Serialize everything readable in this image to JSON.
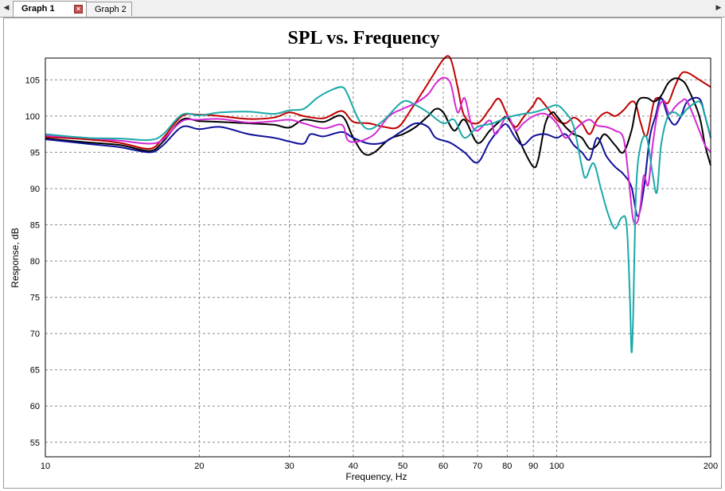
{
  "tabs": [
    {
      "label": "Graph 1",
      "active": true
    },
    {
      "label": "Graph 2",
      "active": false
    }
  ],
  "icons": {
    "close": "close-icon",
    "left": "chevron-left-icon",
    "right": "chevron-right-icon"
  },
  "chart_data": {
    "type": "line",
    "title": "SPL vs. Frequency",
    "xlabel": "Frequency, Hz",
    "ylabel": "Response, dB",
    "xscale": "log",
    "xlim": [
      10,
      200
    ],
    "ylim": [
      53,
      108
    ],
    "xticks": [
      10,
      20,
      30,
      40,
      50,
      60,
      70,
      80,
      90,
      100,
      200
    ],
    "xgrid": [
      10,
      20,
      30,
      40,
      50,
      60,
      70,
      80,
      90,
      100,
      200
    ],
    "yticks": [
      55,
      60,
      65,
      70,
      75,
      80,
      85,
      90,
      95,
      100,
      105
    ],
    "grid": true,
    "series": [
      {
        "color": "#c00000",
        "points": [
          [
            10,
            97.1
          ],
          [
            12,
            96.8
          ],
          [
            14,
            96.3
          ],
          [
            16,
            95.5
          ],
          [
            17,
            97
          ],
          [
            18.5,
            100
          ],
          [
            20,
            100.2
          ],
          [
            22,
            100
          ],
          [
            25,
            99.6
          ],
          [
            28,
            99.8
          ],
          [
            30,
            100.5
          ],
          [
            32,
            100
          ],
          [
            35,
            99.7
          ],
          [
            38,
            100.7
          ],
          [
            40,
            99.2
          ],
          [
            43,
            99
          ],
          [
            46,
            98.5
          ],
          [
            49,
            98.5
          ],
          [
            52,
            101
          ],
          [
            56,
            104.5
          ],
          [
            60,
            107.8
          ],
          [
            62,
            107.9
          ],
          [
            64,
            104
          ],
          [
            66,
            100
          ],
          [
            70,
            99
          ],
          [
            74,
            101
          ],
          [
            77,
            102.4
          ],
          [
            80,
            100.2
          ],
          [
            83,
            98.5
          ],
          [
            86,
            99.8
          ],
          [
            90,
            101.5
          ],
          [
            92,
            102.5
          ],
          [
            95,
            101.5
          ],
          [
            100,
            99.5
          ],
          [
            104,
            99
          ],
          [
            108,
            99.8
          ],
          [
            112,
            99
          ],
          [
            116,
            97.5
          ],
          [
            120,
            99.5
          ],
          [
            125,
            100.5
          ],
          [
            130,
            100
          ],
          [
            135,
            100.8
          ],
          [
            140,
            102
          ],
          [
            143,
            101.5
          ],
          [
            146,
            99
          ],
          [
            150,
            97.3
          ],
          [
            155,
            102
          ],
          [
            160,
            102.4
          ],
          [
            165,
            101.8
          ],
          [
            170,
            104
          ],
          [
            175,
            105.8
          ],
          [
            180,
            106
          ],
          [
            190,
            105
          ],
          [
            200,
            104
          ]
        ]
      },
      {
        "color": "#000000",
        "points": [
          [
            10,
            96.9
          ],
          [
            12,
            96.4
          ],
          [
            14,
            96
          ],
          [
            16,
            95.2
          ],
          [
            17,
            96.5
          ],
          [
            18.5,
            99.5
          ],
          [
            20,
            99.3
          ],
          [
            22,
            99.2
          ],
          [
            25,
            99
          ],
          [
            28,
            98.8
          ],
          [
            30,
            98.4
          ],
          [
            32,
            99.5
          ],
          [
            35,
            99.2
          ],
          [
            38,
            100
          ],
          [
            40,
            97
          ],
          [
            42,
            94.8
          ],
          [
            44,
            95
          ],
          [
            47,
            96.8
          ],
          [
            50,
            97.5
          ],
          [
            53,
            98.5
          ],
          [
            56,
            100
          ],
          [
            58,
            101
          ],
          [
            60,
            100.5
          ],
          [
            63,
            98
          ],
          [
            66,
            99.5
          ],
          [
            70,
            96.3
          ],
          [
            74,
            98
          ],
          [
            78,
            99.5
          ],
          [
            80,
            99.8
          ],
          [
            83,
            98
          ],
          [
            86,
            95.5
          ],
          [
            90,
            93
          ],
          [
            92,
            94
          ],
          [
            95,
            99
          ],
          [
            98,
            100.5
          ],
          [
            100,
            100
          ],
          [
            104,
            98.5
          ],
          [
            108,
            97.5
          ],
          [
            112,
            97
          ],
          [
            116,
            95.5
          ],
          [
            120,
            96
          ],
          [
            124,
            97.5
          ],
          [
            130,
            96
          ],
          [
            135,
            95
          ],
          [
            140,
            98
          ],
          [
            144,
            102
          ],
          [
            150,
            102.5
          ],
          [
            155,
            102
          ],
          [
            160,
            102.8
          ],
          [
            165,
            104.5
          ],
          [
            170,
            105.2
          ],
          [
            175,
            105
          ],
          [
            180,
            104
          ],
          [
            190,
            100
          ],
          [
            195,
            96
          ],
          [
            200,
            93.2
          ]
        ]
      },
      {
        "color": "#10109a",
        "points": [
          [
            10,
            96.8
          ],
          [
            12,
            96.2
          ],
          [
            14,
            95.7
          ],
          [
            16,
            95
          ],
          [
            17,
            96
          ],
          [
            18.5,
            98.5
          ],
          [
            20,
            98.2
          ],
          [
            22,
            98.5
          ],
          [
            25,
            97.5
          ],
          [
            28,
            97
          ],
          [
            30,
            96.5
          ],
          [
            32,
            96.2
          ],
          [
            33,
            97.5
          ],
          [
            35,
            97.2
          ],
          [
            38,
            97.8
          ],
          [
            40,
            97
          ],
          [
            43,
            96.2
          ],
          [
            46,
            96.4
          ],
          [
            50,
            98
          ],
          [
            53,
            99
          ],
          [
            56,
            98.5
          ],
          [
            58,
            97
          ],
          [
            62,
            96.3
          ],
          [
            66,
            95
          ],
          [
            70,
            93.6
          ],
          [
            74,
            96.5
          ],
          [
            78,
            98.5
          ],
          [
            80,
            98.8
          ],
          [
            83,
            97
          ],
          [
            86,
            96
          ],
          [
            90,
            97.2
          ],
          [
            95,
            97.5
          ],
          [
            100,
            97
          ],
          [
            104,
            97.5
          ],
          [
            108,
            96
          ],
          [
            112,
            95
          ],
          [
            116,
            94
          ],
          [
            120,
            97
          ],
          [
            125,
            94.5
          ],
          [
            130,
            93
          ],
          [
            135,
            92
          ],
          [
            140,
            90.2
          ],
          [
            144,
            86.2
          ],
          [
            148,
            90
          ],
          [
            152,
            97
          ],
          [
            156,
            100
          ],
          [
            160,
            102.5
          ],
          [
            165,
            100
          ],
          [
            170,
            98.8
          ],
          [
            175,
            100
          ],
          [
            180,
            102
          ],
          [
            190,
            102.4
          ],
          [
            195,
            100
          ],
          [
            200,
            97
          ]
        ]
      },
      {
        "color": "#d42ad4",
        "points": [
          [
            10,
            97.3
          ],
          [
            12,
            97
          ],
          [
            14,
            96.6
          ],
          [
            16,
            96.2
          ],
          [
            17,
            96.8
          ],
          [
            18.5,
            99.3
          ],
          [
            20,
            99.5
          ],
          [
            22,
            99.6
          ],
          [
            25,
            99.1
          ],
          [
            28,
            99.3
          ],
          [
            30,
            99.5
          ],
          [
            32,
            99
          ],
          [
            35,
            98.3
          ],
          [
            38,
            98.8
          ],
          [
            39,
            96.7
          ],
          [
            41,
            96.5
          ],
          [
            44,
            97.5
          ],
          [
            47,
            100
          ],
          [
            50,
            101
          ],
          [
            53,
            101.8
          ],
          [
            56,
            103
          ],
          [
            58,
            104.5
          ],
          [
            60,
            105.3
          ],
          [
            62,
            104.5
          ],
          [
            64,
            100.5
          ],
          [
            66,
            102.5
          ],
          [
            68,
            99
          ],
          [
            70,
            98
          ],
          [
            74,
            99.4
          ],
          [
            76,
            97.5
          ],
          [
            80,
            100
          ],
          [
            83,
            98
          ],
          [
            86,
            99
          ],
          [
            90,
            100
          ],
          [
            95,
            100.3
          ],
          [
            100,
            99
          ],
          [
            104,
            97
          ],
          [
            108,
            98
          ],
          [
            112,
            99
          ],
          [
            116,
            99.5
          ],
          [
            120,
            98.7
          ],
          [
            125,
            98.5
          ],
          [
            130,
            98
          ],
          [
            135,
            97
          ],
          [
            138,
            92
          ],
          [
            141,
            85.8
          ],
          [
            144,
            85.5
          ],
          [
            146,
            88
          ],
          [
            148,
            91.8
          ],
          [
            151,
            90.5
          ],
          [
            154,
            96
          ],
          [
            158,
            101
          ],
          [
            162,
            102
          ],
          [
            166,
            100.3
          ],
          [
            170,
            101.2
          ],
          [
            175,
            102
          ],
          [
            180,
            102
          ],
          [
            190,
            98
          ],
          [
            195,
            96
          ],
          [
            200,
            95
          ]
        ]
      },
      {
        "color": "#1aa9a9",
        "points": [
          [
            10,
            97.5
          ],
          [
            12,
            97
          ],
          [
            14,
            96.9
          ],
          [
            16,
            96.7
          ],
          [
            17,
            97.5
          ],
          [
            18.5,
            100.2
          ],
          [
            20,
            100.1
          ],
          [
            22,
            100.5
          ],
          [
            25,
            100.6
          ],
          [
            28,
            100.3
          ],
          [
            30,
            100.8
          ],
          [
            32,
            101
          ],
          [
            34,
            102.5
          ],
          [
            36,
            103.5
          ],
          [
            38,
            104
          ],
          [
            39,
            103
          ],
          [
            41,
            99.5
          ],
          [
            43,
            98.2
          ],
          [
            46,
            99.5
          ],
          [
            50,
            102
          ],
          [
            53,
            101.5
          ],
          [
            56,
            100.5
          ],
          [
            60,
            99
          ],
          [
            63,
            99.5
          ],
          [
            66,
            97
          ],
          [
            70,
            98.5
          ],
          [
            75,
            99
          ],
          [
            80,
            99.8
          ],
          [
            86,
            100.3
          ],
          [
            90,
            100.5
          ],
          [
            95,
            101
          ],
          [
            100,
            101.5
          ],
          [
            104,
            100.5
          ],
          [
            108,
            98.5
          ],
          [
            112,
            93
          ],
          [
            114,
            91.5
          ],
          [
            118,
            93.5
          ],
          [
            122,
            90
          ],
          [
            126,
            86.5
          ],
          [
            130,
            84.5
          ],
          [
            134,
            86
          ],
          [
            137,
            85
          ],
          [
            139,
            75
          ],
          [
            140,
            67.5
          ],
          [
            141,
            72
          ],
          [
            143,
            90
          ],
          [
            146,
            96
          ],
          [
            150,
            97
          ],
          [
            154,
            92
          ],
          [
            157,
            89.5
          ],
          [
            160,
            96
          ],
          [
            165,
            100
          ],
          [
            170,
            100.5
          ],
          [
            175,
            100
          ],
          [
            180,
            101
          ],
          [
            190,
            102
          ],
          [
            195,
            100
          ],
          [
            200,
            97
          ]
        ]
      }
    ]
  }
}
